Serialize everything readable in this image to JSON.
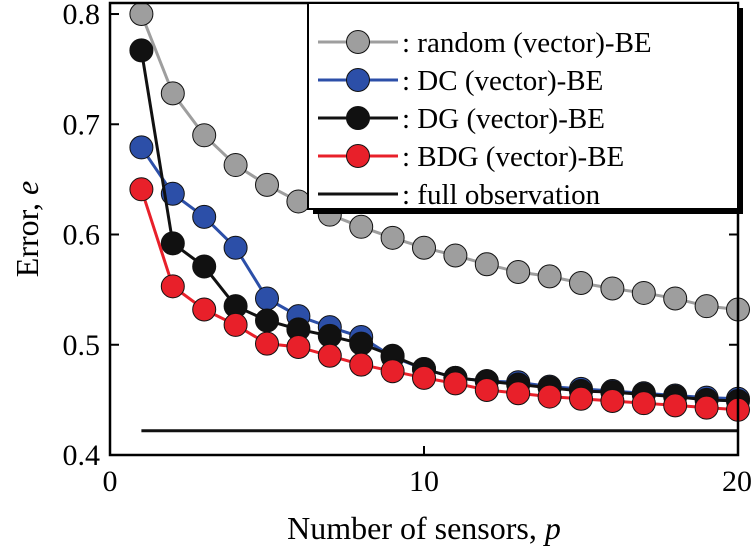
{
  "chart_data": {
    "type": "line",
    "xlabel": "Number of sensors, ",
    "xlabel_var": "p",
    "ylabel": "Error, ",
    "ylabel_var": "e",
    "xlim": [
      0,
      20
    ],
    "ylim": [
      0.4,
      0.81
    ],
    "xticks": [
      0,
      10,
      20
    ],
    "xtick_labels": [
      "0",
      "10",
      "20"
    ],
    "yticks": [
      0.4,
      0.5,
      0.6,
      0.7,
      0.8
    ],
    "ytick_labels": [
      "0.4",
      "0.5",
      "0.6",
      "0.7",
      "0.8"
    ],
    "grid": false,
    "legend_position": "top-right",
    "series": [
      {
        "name": ": random (vector)-BE",
        "color": "#9e9e9e",
        "marker": "circle",
        "x": [
          1,
          2,
          3,
          4,
          5,
          6,
          7,
          8,
          9,
          10,
          11,
          12,
          13,
          14,
          15,
          16,
          17,
          18,
          19,
          20
        ],
        "y": [
          0.8,
          0.728,
          0.69,
          0.663,
          0.645,
          0.63,
          0.618,
          0.607,
          0.597,
          0.588,
          0.581,
          0.573,
          0.566,
          0.562,
          0.556,
          0.551,
          0.547,
          0.542,
          0.535,
          0.532
        ]
      },
      {
        "name": ": DC (vector)-BE",
        "color": "#2c4fa8",
        "marker": "circle",
        "x": [
          1,
          2,
          3,
          4,
          5,
          6,
          7,
          8,
          9,
          10,
          11,
          12,
          13,
          14,
          15,
          16,
          17,
          18,
          19,
          20
        ],
        "y": [
          0.679,
          0.637,
          0.616,
          0.588,
          0.542,
          0.526,
          0.516,
          0.507,
          0.489,
          0.478,
          0.47,
          0.467,
          0.466,
          0.462,
          0.46,
          0.458,
          0.456,
          0.454,
          0.452,
          0.451
        ]
      },
      {
        "name": ": DG (vector)-BE",
        "color": "#111111",
        "marker": "circle",
        "x": [
          1,
          2,
          3,
          4,
          5,
          6,
          7,
          8,
          9,
          10,
          11,
          12,
          13,
          14,
          15,
          16,
          17,
          18,
          19,
          20
        ],
        "y": [
          0.767,
          0.592,
          0.571,
          0.535,
          0.522,
          0.514,
          0.508,
          0.501,
          0.49,
          0.478,
          0.47,
          0.467,
          0.464,
          0.461,
          0.458,
          0.457,
          0.455,
          0.453,
          0.45,
          0.449
        ]
      },
      {
        "name": ": BDG (vector)-BE",
        "color": "#e8202a",
        "marker": "circle",
        "x": [
          1,
          2,
          3,
          4,
          5,
          6,
          7,
          8,
          9,
          10,
          11,
          12,
          13,
          14,
          15,
          16,
          17,
          18,
          19,
          20
        ],
        "y": [
          0.641,
          0.553,
          0.532,
          0.518,
          0.501,
          0.498,
          0.49,
          0.482,
          0.476,
          0.47,
          0.465,
          0.459,
          0.456,
          0.453,
          0.451,
          0.449,
          0.447,
          0.445,
          0.443,
          0.441
        ]
      },
      {
        "name": ": full observation",
        "color": "#111111",
        "marker": "none",
        "x": [
          1,
          20
        ],
        "y": [
          0.422,
          0.422
        ]
      }
    ]
  }
}
